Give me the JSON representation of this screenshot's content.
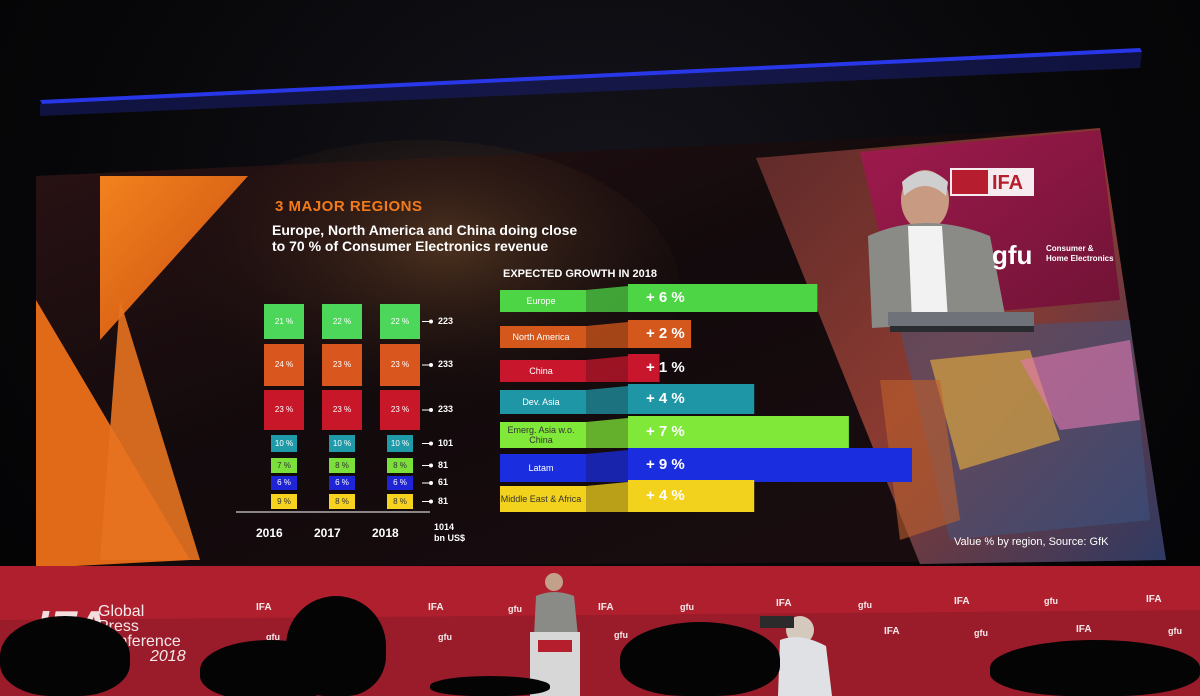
{
  "slide": {
    "heading": "3 MAJOR REGIONS",
    "subtitle_line1": "Europe, North America and China doing close",
    "subtitle_line2": "to 70 % of Consumer Electronics revenue",
    "growth_title": "EXPECTED GROWTH IN 2018",
    "source": "Value % by region, Source: GfK",
    "unit_line1": "1014",
    "unit_line2": "bn US$"
  },
  "chart_data": [
    {
      "type": "bar",
      "stacked": true,
      "categories": [
        "2016",
        "2017",
        "2018"
      ],
      "series": [
        {
          "color": "#f7d21e",
          "values": [
            "9 %",
            "8 %",
            "8 %"
          ]
        },
        {
          "color": "#1f24d6",
          "values": [
            "6 %",
            "6 %",
            "6 %"
          ]
        },
        {
          "color": "#7be03a",
          "values": [
            "7 %",
            "8 %",
            "8 %"
          ]
        },
        {
          "color": "#1f9aa8",
          "values": [
            "10 %",
            "10 %",
            "10 %"
          ]
        },
        {
          "color": "#c9172a",
          "values": [
            "23 %",
            "23 %",
            "23 %"
          ]
        },
        {
          "color": "#d9561e",
          "values": [
            "24 %",
            "23 %",
            "23 %"
          ]
        },
        {
          "color": "#4cd65a",
          "values": [
            "21 %",
            "22 %",
            "22 %"
          ]
        }
      ],
      "totals_2018": [
        "81",
        "61",
        "81",
        "101",
        "233",
        "233",
        "223"
      ]
    },
    {
      "type": "bar",
      "orientation": "horizontal",
      "categories": [
        "Europe",
        "North America",
        "China",
        "Dev. Asia",
        "Emerg. Asia w.o. China",
        "Latam",
        "Middle East & Africa"
      ],
      "values": [
        6,
        2,
        1,
        4,
        7,
        9,
        4
      ],
      "labels": [
        "+ 6 %",
        "+ 2 %",
        "+ 1 %",
        "+ 4 %",
        "+ 7 %",
        "+ 9 %",
        "+ 4 %"
      ],
      "colors": [
        "#4dd545",
        "#d4581c",
        "#c8172c",
        "#1f96a6",
        "#7fe838",
        "#1a2ee0",
        "#f2d21c"
      ]
    }
  ],
  "banner": {
    "ifa": "IFA",
    "gpc_line1": "Global",
    "gpc_line2": "Press",
    "gpc_line3": "Conference",
    "gpc_year": "2018",
    "small_logo": "IFA",
    "gfu": "gfu"
  },
  "video_panel": {
    "ifa": "IFA",
    "gfu": "gfu",
    "gfu_sub1": "Consumer &",
    "gfu_sub2": "Home Electronics"
  },
  "colors": {
    "accent_orange": "#f07a1a",
    "banner_red": "#b1202e",
    "screen_bg": "#1b0a0e"
  }
}
